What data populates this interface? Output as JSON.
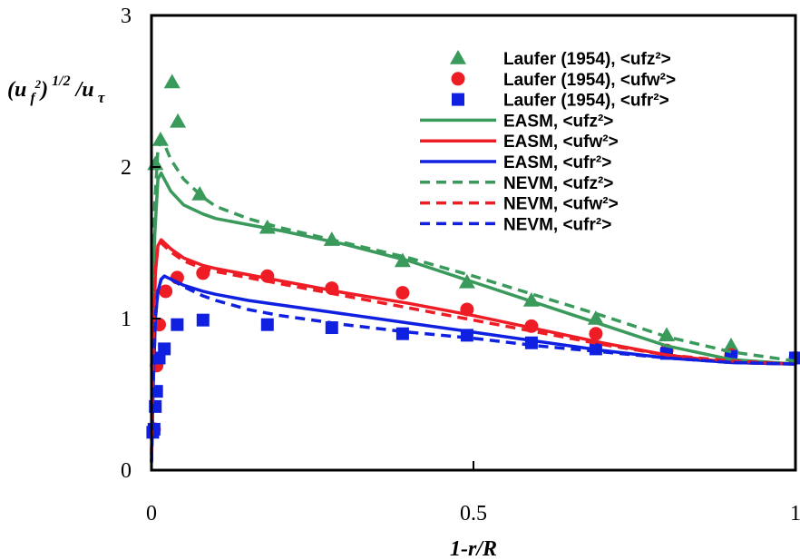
{
  "chart_data": {
    "type": "scatter",
    "xlabel": "1-r/R",
    "ylabel": {
      "base": "(u",
      "sub": "f",
      "sup2": "2",
      "close": ")",
      "sup": "1/2",
      "slash": "/u",
      "sub2": "τ"
    },
    "xlim": [
      0,
      1
    ],
    "ylim": [
      0,
      3
    ],
    "xticks": [
      "0",
      "0.5",
      "1"
    ],
    "yticks": [
      "0",
      "1",
      "2",
      "3"
    ],
    "grid": false,
    "legend_position": "top-right",
    "series": [
      {
        "name": "Laufer (1954), <ufz²>",
        "kind": "marker",
        "marker": "triangle",
        "color": "#3a9a5b",
        "x": [
          0.006,
          0.014,
          0.032,
          0.041,
          0.075,
          0.18,
          0.28,
          0.39,
          0.49,
          0.59,
          0.69,
          0.8,
          0.9,
          1.0
        ],
        "y": [
          2.02,
          2.18,
          2.56,
          2.3,
          1.82,
          1.6,
          1.52,
          1.38,
          1.24,
          1.12,
          1.0,
          0.89,
          0.82,
          0.74
        ]
      },
      {
        "name": "Laufer (1954), <ufw²>",
        "kind": "marker",
        "marker": "circle",
        "color": "#ee1c25",
        "x": [
          0.004,
          0.008,
          0.012,
          0.022,
          0.04,
          0.08,
          0.18,
          0.28,
          0.39,
          0.49,
          0.59,
          0.69,
          0.8,
          0.9,
          1.0
        ],
        "y": [
          0.27,
          0.69,
          0.96,
          1.18,
          1.27,
          1.3,
          1.28,
          1.2,
          1.17,
          1.06,
          0.95,
          0.9,
          0.79,
          0.76,
          0.74
        ]
      },
      {
        "name": "Laufer (1954), <ufr²>",
        "kind": "marker",
        "marker": "square",
        "color": "#1020e0",
        "x": [
          0.002,
          0.004,
          0.006,
          0.008,
          0.012,
          0.02,
          0.04,
          0.08,
          0.18,
          0.28,
          0.39,
          0.49,
          0.59,
          0.69,
          0.8,
          0.9,
          1.0
        ],
        "y": [
          0.25,
          0.27,
          0.42,
          0.52,
          0.74,
          0.8,
          0.96,
          0.99,
          0.96,
          0.94,
          0.9,
          0.89,
          0.84,
          0.8,
          0.77,
          0.75,
          0.74
        ]
      },
      {
        "name": "EASM, <ufz²>",
        "kind": "line",
        "dashed": false,
        "color": "#3a9a5b",
        "x": [
          0,
          0.002,
          0.005,
          0.01,
          0.015,
          0.02,
          0.03,
          0.05,
          0.08,
          0.1,
          0.15,
          0.2,
          0.3,
          0.4,
          0.5,
          0.6,
          0.7,
          0.8,
          0.9,
          1.0
        ],
        "y": [
          0.2,
          0.9,
          1.55,
          1.92,
          1.96,
          1.92,
          1.84,
          1.75,
          1.69,
          1.66,
          1.62,
          1.58,
          1.49,
          1.38,
          1.24,
          1.1,
          0.96,
          0.82,
          0.73,
          0.7
        ]
      },
      {
        "name": "EASM, <ufw²>",
        "kind": "line",
        "dashed": false,
        "color": "#ee1c25",
        "x": [
          0,
          0.003,
          0.006,
          0.01,
          0.015,
          0.02,
          0.03,
          0.05,
          0.08,
          0.1,
          0.15,
          0.2,
          0.3,
          0.4,
          0.5,
          0.6,
          0.7,
          0.8,
          0.9,
          1.0
        ],
        "y": [
          0.1,
          0.8,
          1.3,
          1.48,
          1.52,
          1.5,
          1.46,
          1.4,
          1.35,
          1.33,
          1.29,
          1.25,
          1.17,
          1.1,
          1.02,
          0.93,
          0.84,
          0.76,
          0.71,
          0.7
        ]
      },
      {
        "name": "EASM, <ufr²>",
        "kind": "line",
        "dashed": false,
        "color": "#1020e0",
        "x": [
          0,
          0.003,
          0.006,
          0.01,
          0.015,
          0.02,
          0.03,
          0.05,
          0.08,
          0.1,
          0.15,
          0.2,
          0.3,
          0.4,
          0.5,
          0.6,
          0.7,
          0.8,
          0.9,
          1.0
        ],
        "y": [
          0.05,
          0.6,
          1.0,
          1.18,
          1.26,
          1.28,
          1.26,
          1.22,
          1.18,
          1.16,
          1.12,
          1.09,
          1.03,
          0.97,
          0.91,
          0.85,
          0.79,
          0.74,
          0.71,
          0.7
        ]
      },
      {
        "name": "NEVM, <ufz²>",
        "kind": "line",
        "dashed": true,
        "color": "#3a9a5b",
        "x": [
          0,
          0.002,
          0.005,
          0.01,
          0.015,
          0.02,
          0.03,
          0.05,
          0.08,
          0.1,
          0.15,
          0.2,
          0.3,
          0.4,
          0.5,
          0.6,
          0.7,
          0.8,
          0.9,
          1.0
        ],
        "y": [
          0.2,
          1.0,
          1.75,
          2.12,
          2.18,
          2.15,
          2.05,
          1.92,
          1.8,
          1.74,
          1.66,
          1.6,
          1.5,
          1.4,
          1.28,
          1.15,
          1.02,
          0.88,
          0.78,
          0.72
        ]
      },
      {
        "name": "NEVM, <ufw²>",
        "kind": "line",
        "dashed": true,
        "color": "#ee1c25",
        "x": [
          0,
          0.003,
          0.006,
          0.01,
          0.015,
          0.02,
          0.03,
          0.05,
          0.08,
          0.1,
          0.15,
          0.2,
          0.3,
          0.4,
          0.5,
          0.6,
          0.7,
          0.8,
          0.9,
          1.0
        ],
        "y": [
          0.1,
          0.85,
          1.32,
          1.48,
          1.5,
          1.48,
          1.44,
          1.38,
          1.33,
          1.31,
          1.27,
          1.23,
          1.15,
          1.07,
          0.99,
          0.91,
          0.83,
          0.76,
          0.72,
          0.7
        ]
      },
      {
        "name": "NEVM, <ufr²>",
        "kind": "line",
        "dashed": true,
        "color": "#1020e0",
        "x": [
          0,
          0.003,
          0.006,
          0.01,
          0.015,
          0.02,
          0.03,
          0.05,
          0.08,
          0.1,
          0.15,
          0.2,
          0.3,
          0.4,
          0.5,
          0.6,
          0.7,
          0.8,
          0.9,
          1.0
        ],
        "y": [
          0.05,
          0.6,
          1.0,
          1.18,
          1.26,
          1.28,
          1.26,
          1.21,
          1.15,
          1.12,
          1.06,
          1.02,
          0.96,
          0.91,
          0.87,
          0.82,
          0.78,
          0.74,
          0.71,
          0.7
        ]
      }
    ]
  }
}
